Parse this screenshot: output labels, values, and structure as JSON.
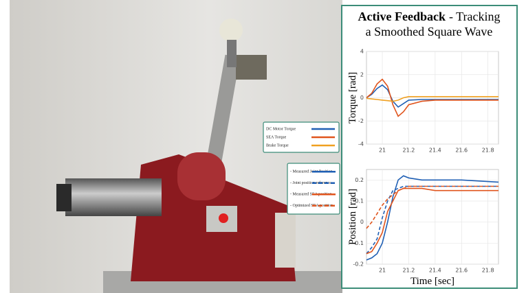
{
  "panel_title": {
    "bold": "Active Feedback",
    "rest": "- Tracking",
    "line2": "a Smoothed Square Wave"
  },
  "chart_data": [
    {
      "type": "line",
      "ylabel": "Torque [rad]",
      "x": [
        20.88,
        20.92,
        20.96,
        21.0,
        21.04,
        21.08,
        21.12,
        21.16,
        21.2,
        21.3,
        21.4,
        21.6,
        21.88
      ],
      "xlim": [
        20.88,
        21.88
      ],
      "xticks": [
        21,
        21.2,
        21.4,
        21.6,
        21.8
      ],
      "ylim": [
        -4,
        4
      ],
      "yticks": [
        -4,
        -2,
        0,
        2,
        4
      ],
      "grid": true,
      "series": [
        {
          "name": "DC Motor Torque",
          "color": "#1f5fb4",
          "dashed": false,
          "values": [
            0,
            0.3,
            0.8,
            1.1,
            0.7,
            -0.3,
            -0.8,
            -0.5,
            -0.2,
            -0.15,
            -0.15,
            -0.15,
            -0.15
          ]
        },
        {
          "name": "SEA Torque",
          "color": "#e0541c",
          "dashed": false,
          "values": [
            0,
            0.4,
            1.2,
            1.6,
            1.0,
            -0.6,
            -1.6,
            -1.2,
            -0.6,
            -0.3,
            -0.2,
            -0.2,
            -0.2
          ]
        },
        {
          "name": "Brake Torque",
          "color": "#f0a020",
          "dashed": false,
          "values": [
            -0.05,
            -0.1,
            -0.15,
            -0.2,
            -0.25,
            -0.3,
            -0.2,
            0,
            0.1,
            0.1,
            0.1,
            0.1,
            0.1
          ]
        }
      ]
    },
    {
      "type": "line",
      "ylabel": "Position [rad]",
      "xlabel": "Time [sec]",
      "x": [
        20.88,
        20.92,
        20.96,
        21.0,
        21.04,
        21.08,
        21.12,
        21.16,
        21.2,
        21.3,
        21.4,
        21.6,
        21.88
      ],
      "xlim": [
        20.88,
        21.88
      ],
      "xticks": [
        21,
        21.2,
        21.4,
        21.6,
        21.8
      ],
      "ylim": [
        -0.2,
        0.25
      ],
      "yticks": [
        -0.2,
        -0.1,
        0,
        0.1,
        0.2
      ],
      "grid": true,
      "series": [
        {
          "name": "- Measured Joint Position",
          "color": "#1f5fb4",
          "dashed": false,
          "values": [
            -0.18,
            -0.17,
            -0.15,
            -0.1,
            0.0,
            0.12,
            0.2,
            0.22,
            0.21,
            0.2,
            0.2,
            0.2,
            0.19
          ]
        },
        {
          "name": "- Joint position reference",
          "color": "#1f5fb4",
          "dashed": true,
          "values": [
            -0.15,
            -0.12,
            -0.08,
            0.02,
            0.1,
            0.15,
            0.16,
            0.17,
            0.17,
            0.17,
            0.17,
            0.17,
            0.17
          ]
        },
        {
          "name": "- Measured SEA position",
          "color": "#e0541c",
          "dashed": false,
          "values": [
            -0.15,
            -0.14,
            -0.1,
            -0.05,
            0.05,
            0.1,
            0.15,
            0.16,
            0.16,
            0.16,
            0.15,
            0.15,
            0.15
          ]
        },
        {
          "name": "- Optimized SEA position",
          "color": "#e0541c",
          "dashed": true,
          "values": [
            -0.03,
            0.0,
            0.04,
            0.08,
            0.11,
            0.13,
            0.15,
            0.16,
            0.17,
            0.17,
            0.17,
            0.17,
            0.17
          ]
        }
      ]
    }
  ]
}
